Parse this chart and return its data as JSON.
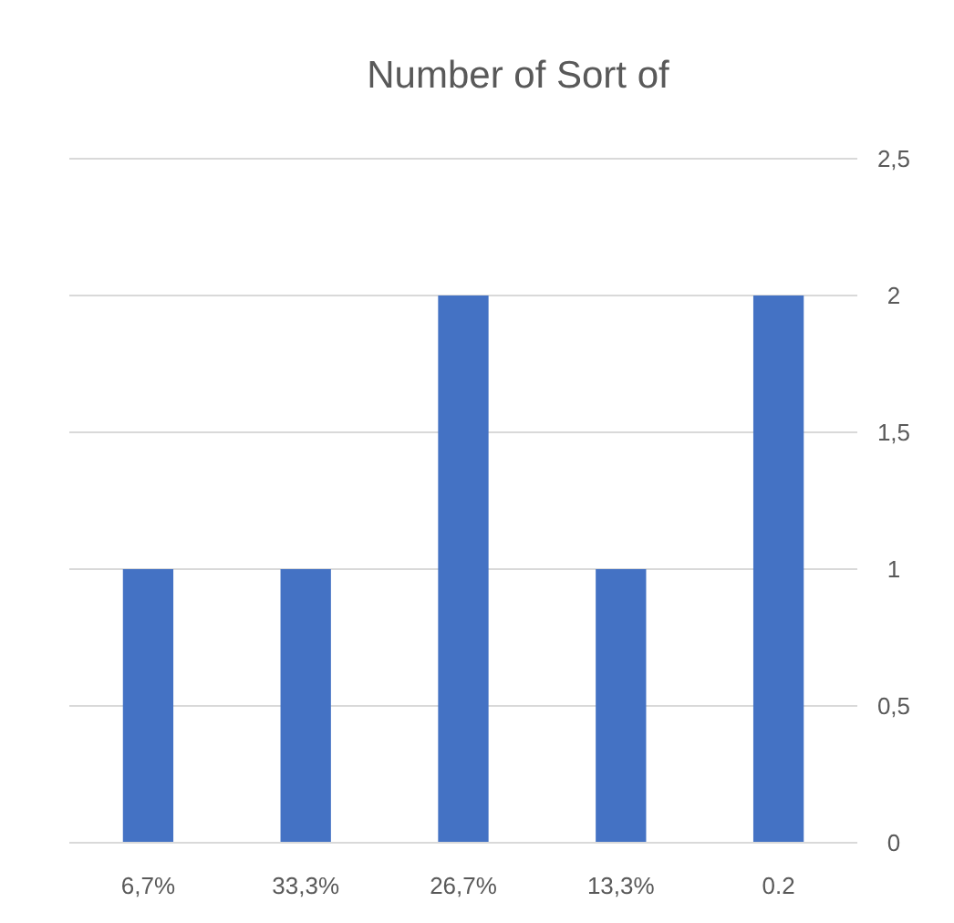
{
  "chart_data": {
    "type": "bar",
    "title": "Number of Sort of",
    "categories": [
      "6,7%",
      "33,3%",
      "26,7%",
      "13,3%",
      "0.2"
    ],
    "values": [
      1,
      1,
      2,
      1,
      2
    ],
    "color": "#4472c4",
    "ylim": [
      0,
      2.5
    ],
    "yticks": [
      0,
      {
        "value": 0.5,
        "label": "0,5"
      },
      1,
      {
        "value": 1.5,
        "label": "1,5"
      },
      2,
      {
        "value": 2.5,
        "label": "2,5"
      }
    ],
    "grid": "y"
  }
}
